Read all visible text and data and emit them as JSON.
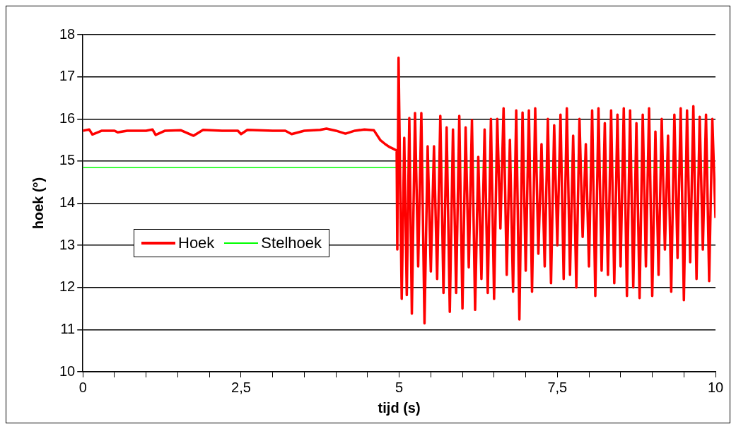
{
  "chart_data": {
    "type": "line",
    "xlabel": "tijd (s)",
    "ylabel": "hoek (°)",
    "xlim": [
      0,
      10
    ],
    "ylim": [
      10,
      18
    ],
    "xticks": [
      0,
      {
        "value": 0.5,
        "label": null
      },
      {
        "value": 1,
        "label": null
      },
      {
        "value": 1.5,
        "label": null
      },
      {
        "value": 2,
        "label": null
      },
      {
        "value": 2.5,
        "label": "2,5"
      },
      {
        "value": 3,
        "label": null
      },
      {
        "value": 3.5,
        "label": null
      },
      {
        "value": 4,
        "label": null
      },
      {
        "value": 4.5,
        "label": null
      },
      5,
      {
        "value": 5.5,
        "label": null
      },
      {
        "value": 6,
        "label": null
      },
      {
        "value": 6.5,
        "label": null
      },
      {
        "value": 7,
        "label": null
      },
      {
        "value": 7.5,
        "label": "7,5"
      },
      {
        "value": 8,
        "label": null
      },
      {
        "value": 8.5,
        "label": null
      },
      {
        "value": 9,
        "label": null
      },
      {
        "value": 9.5,
        "label": null
      },
      10
    ],
    "yticks": [
      10,
      11,
      12,
      13,
      14,
      15,
      16,
      17,
      18
    ],
    "grid": "y",
    "legend": "left",
    "marker": "none",
    "line_style": "solid",
    "series": [
      {
        "name": "Hoek",
        "color": "#ff0000",
        "x": [
          0,
          0.1,
          0.15,
          0.3,
          0.5,
          0.55,
          0.7,
          1.0,
          1.1,
          1.15,
          1.3,
          1.55,
          1.75,
          1.9,
          2.2,
          2.45,
          2.5,
          2.6,
          3.0,
          3.2,
          3.3,
          3.5,
          3.75,
          3.85,
          4.0,
          4.15,
          4.3,
          4.45,
          4.6,
          4.7,
          4.78,
          4.85,
          4.92,
          4.96,
          4.97,
          4.99,
          5.04,
          5.08,
          5.12,
          5.16,
          5.2,
          5.25,
          5.3,
          5.35,
          5.4,
          5.45,
          5.5,
          5.55,
          5.6,
          5.65,
          5.7,
          5.75,
          5.8,
          5.85,
          5.9,
          5.95,
          6.0,
          6.05,
          6.1,
          6.15,
          6.2,
          6.25,
          6.3,
          6.35,
          6.4,
          6.45,
          6.5,
          6.55,
          6.6,
          6.65,
          6.7,
          6.75,
          6.8,
          6.85,
          6.9,
          6.95,
          7.0,
          7.05,
          7.1,
          7.15,
          7.2,
          7.25,
          7.3,
          7.35,
          7.4,
          7.45,
          7.5,
          7.55,
          7.6,
          7.65,
          7.7,
          7.75,
          7.8,
          7.85,
          7.9,
          7.95,
          8.0,
          8.05,
          8.1,
          8.15,
          8.2,
          8.25,
          8.3,
          8.35,
          8.4,
          8.45,
          8.5,
          8.55,
          8.6,
          8.65,
          8.7,
          8.75,
          8.8,
          8.85,
          8.9,
          8.95,
          9.0,
          9.05,
          9.1,
          9.15,
          9.2,
          9.25,
          9.3,
          9.35,
          9.4,
          9.45,
          9.5,
          9.55,
          9.6,
          9.65,
          9.7,
          9.75,
          9.8,
          9.85,
          9.9,
          9.95,
          10.0
        ],
        "values": [
          15.72,
          15.75,
          15.63,
          15.72,
          15.72,
          15.68,
          15.72,
          15.72,
          15.75,
          15.62,
          15.72,
          15.73,
          15.6,
          15.74,
          15.72,
          15.72,
          15.64,
          15.74,
          15.72,
          15.72,
          15.64,
          15.72,
          15.74,
          15.77,
          15.72,
          15.65,
          15.72,
          15.75,
          15.73,
          15.5,
          15.4,
          15.33,
          15.28,
          15.25,
          12.9,
          17.45,
          11.73,
          15.55,
          11.82,
          16.02,
          11.38,
          16.14,
          12.5,
          16.14,
          11.15,
          15.35,
          12.38,
          15.35,
          12.2,
          16.07,
          11.87,
          15.8,
          11.42,
          15.75,
          11.87,
          16.07,
          11.5,
          15.8,
          12.48,
          15.97,
          11.47,
          15.1,
          12.2,
          15.75,
          11.87,
          16.0,
          11.73,
          16.0,
          13.4,
          16.25,
          12.3,
          15.5,
          11.9,
          16.2,
          11.24,
          16.15,
          12.4,
          16.2,
          11.9,
          16.25,
          12.8,
          15.4,
          12.5,
          16.0,
          12.1,
          15.85,
          13.0,
          16.1,
          12.2,
          16.25,
          12.3,
          15.6,
          12.0,
          16.0,
          13.2,
          15.4,
          12.5,
          16.2,
          11.8,
          16.25,
          12.4,
          15.9,
          12.3,
          16.2,
          12.1,
          16.1,
          12.5,
          16.25,
          11.8,
          16.2,
          12.0,
          15.9,
          11.75,
          16.1,
          12.5,
          16.25,
          11.8,
          15.7,
          12.3,
          16.0,
          12.9,
          15.6,
          11.9,
          16.1,
          12.7,
          16.25,
          11.7,
          16.2,
          12.6,
          16.3,
          12.2,
          16.05,
          12.9,
          16.1,
          12.15,
          16.0,
          13.65
        ]
      },
      {
        "name": "Stelhoek",
        "color": "#00ff00",
        "x": [
          0,
          10
        ],
        "values": [
          14.85,
          14.85
        ]
      }
    ]
  }
}
